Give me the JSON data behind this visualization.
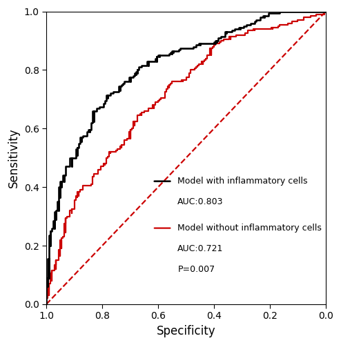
{
  "title": "",
  "xlabel": "Specificity",
  "ylabel": "Sensitivity",
  "xlim": [
    1.0,
    0.0
  ],
  "ylim": [
    0.0,
    1.0
  ],
  "xticks": [
    1.0,
    0.8,
    0.6,
    0.4,
    0.2,
    0.0
  ],
  "yticks": [
    0.0,
    0.2,
    0.4,
    0.6,
    0.8,
    1.0
  ],
  "model1_color": "#000000",
  "model2_color": "#CC0000",
  "diagonal_color": "#CC0000",
  "background_color": "#FFFFFF",
  "line_width": 1.6,
  "font_size": 12,
  "tick_fontsize": 10,
  "legend_fontsize": 9,
  "legend_label1": "Model with inflammatory cells",
  "legend_auc1": "AUC:0.803",
  "legend_label2": "Model without inflammatory cells",
  "legend_auc2": "AUC:0.721",
  "legend_pval": "P=0.007"
}
